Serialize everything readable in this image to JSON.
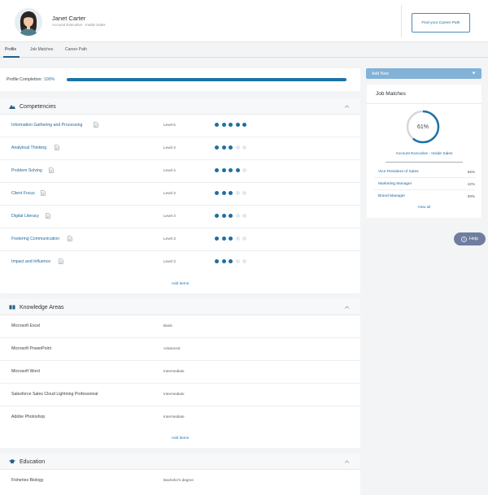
{
  "user": {
    "name": "Janet Carter",
    "title": "Account Executive - Inside Sales",
    "career_button": "Find your Career Path"
  },
  "tabs": [
    "Profile",
    "Job Matches",
    "Career Path"
  ],
  "active_tab": "Profile",
  "completion": {
    "label": "Profile Completion:",
    "value": "100%",
    "fraction": 1.0
  },
  "competencies": {
    "title": "Competencies",
    "add_label": "Add items",
    "rows": [
      {
        "name": "Information Gathering and Processing",
        "level": "Level 5",
        "rating": 5
      },
      {
        "name": "Analytical Thinking",
        "level": "Level 3",
        "rating": 3
      },
      {
        "name": "Problem Solving",
        "level": "Level 4",
        "rating": 4
      },
      {
        "name": "Client Focus",
        "level": "Level 3",
        "rating": 3
      },
      {
        "name": "Digital Literacy",
        "level": "Level 3",
        "rating": 3
      },
      {
        "name": "Fostering Communication",
        "level": "Level 3",
        "rating": 3
      },
      {
        "name": "Impact and Influence",
        "level": "Level 3",
        "rating": 3
      }
    ],
    "max_rating": 5
  },
  "knowledge": {
    "title": "Knowledge Areas",
    "add_label": "Add items",
    "rows": [
      {
        "name": "Microsoft Excel",
        "level": "Basic"
      },
      {
        "name": "Microsoft PowerPoint",
        "level": "Advanced"
      },
      {
        "name": "Microsoft Word",
        "level": "Intermediate"
      },
      {
        "name": "Salesforce Sales Cloud Lightning Professional",
        "level": "Intermediate"
      },
      {
        "name": "Adobe Photoshop",
        "level": "Intermediate"
      }
    ]
  },
  "education": {
    "title": "Education",
    "rows": [
      {
        "name": "Fisheries Biology",
        "level": "Bachelor's degree"
      }
    ]
  },
  "add_new": {
    "label": "Add New"
  },
  "job_matches": {
    "title": "Job Matches",
    "top_percent": "61%",
    "top_fraction": 0.61,
    "top_match": "Account Executive - Inside Sales",
    "others": [
      {
        "name": "Vice President of Sales",
        "percent": "55%"
      },
      {
        "name": "Marketing Manager",
        "percent": "42%"
      },
      {
        "name": "Brand Manager",
        "percent": "39%"
      }
    ],
    "view_all": "View all"
  },
  "help": {
    "label": "Help"
  },
  "colors": {
    "brand": "#1d73a8",
    "link": "#2169a0",
    "add_new_bg": "#82b2d8",
    "help_bg": "#6f7ea0"
  },
  "icons": [
    "document-icon",
    "competencies-icon",
    "knowledge-icon",
    "education-icon",
    "chevron-up-icon",
    "chevron-down-icon",
    "help-icon"
  ]
}
